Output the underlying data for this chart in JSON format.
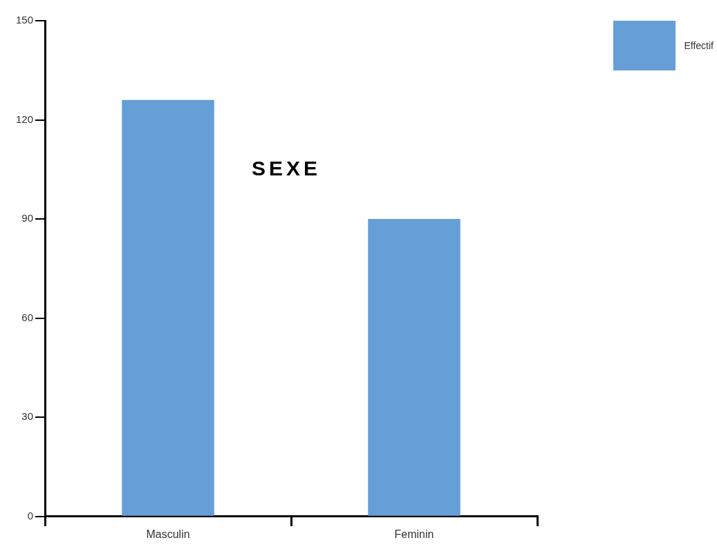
{
  "chart_data": {
    "type": "bar",
    "title": "SEXE",
    "categories": [
      "Masculin",
      "Feminin"
    ],
    "series": [
      {
        "name": "Effectif",
        "color": "#659fd6",
        "values": [
          126,
          90
        ]
      }
    ],
    "ylim": [
      0,
      150
    ],
    "yticks": [
      0,
      30,
      60,
      90,
      120,
      150
    ],
    "grid": false,
    "legend": "top right"
  }
}
